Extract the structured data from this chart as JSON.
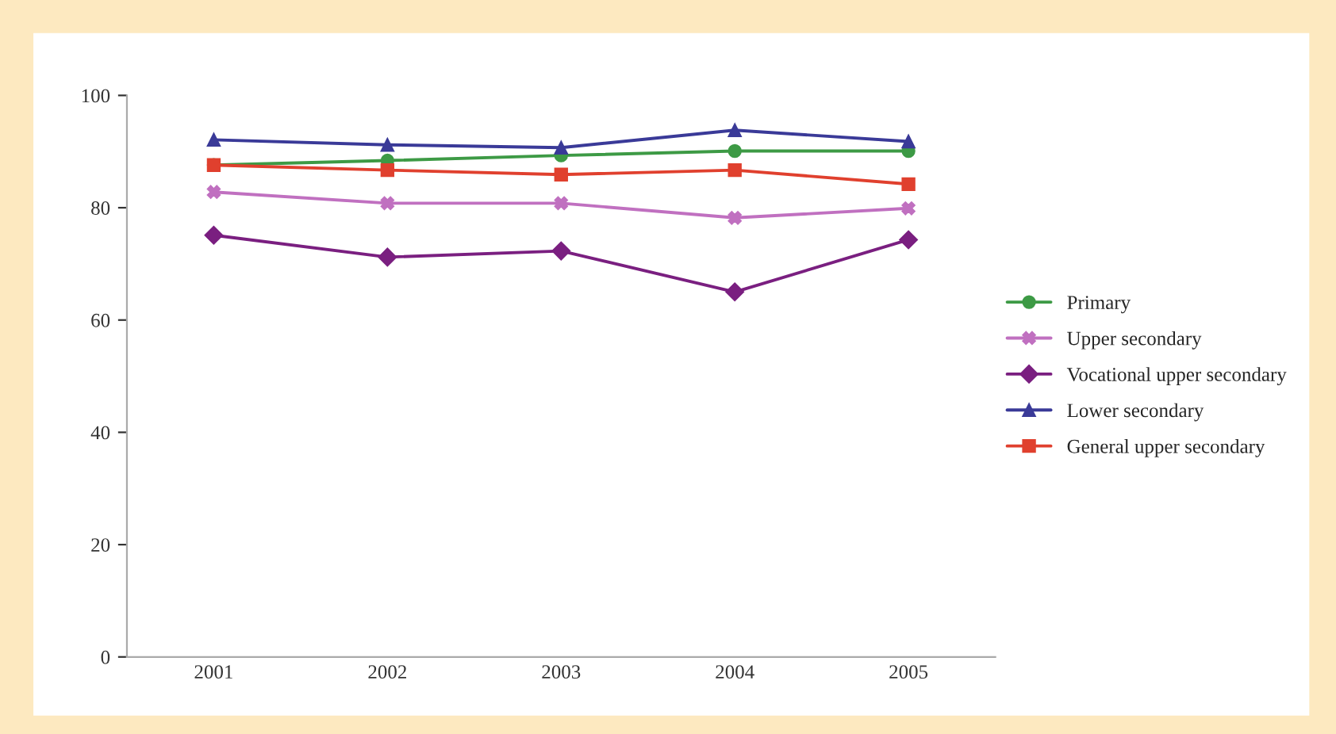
{
  "chart_data": {
    "type": "line",
    "categories": [
      "2001",
      "2002",
      "2003",
      "2004",
      "2005"
    ],
    "series": [
      {
        "name": "Primary",
        "color": "#3d9a45",
        "marker": "circle",
        "values": [
          87.6,
          88.4,
          89.3,
          90.1,
          90.1
        ]
      },
      {
        "name": "Upper secondary",
        "color": "#c070c0",
        "marker": "cross",
        "values": [
          82.8,
          80.8,
          80.8,
          78.2,
          79.9
        ]
      },
      {
        "name": "Vocational upper secondary",
        "color": "#7a1f80",
        "marker": "diamond",
        "values": [
          75.1,
          71.2,
          72.3,
          65.0,
          74.3
        ]
      },
      {
        "name": "Lower secondary",
        "color": "#3a3a98",
        "marker": "triangle",
        "values": [
          92.1,
          91.2,
          90.7,
          93.8,
          91.8
        ]
      },
      {
        "name": "General upper secondary",
        "color": "#e0402e",
        "marker": "square",
        "values": [
          87.6,
          86.7,
          85.9,
          86.7,
          84.2
        ]
      }
    ],
    "ylim": [
      0,
      100
    ],
    "yticks": [
      0,
      20,
      40,
      60,
      80,
      100
    ],
    "grid": false,
    "legend": "right"
  }
}
